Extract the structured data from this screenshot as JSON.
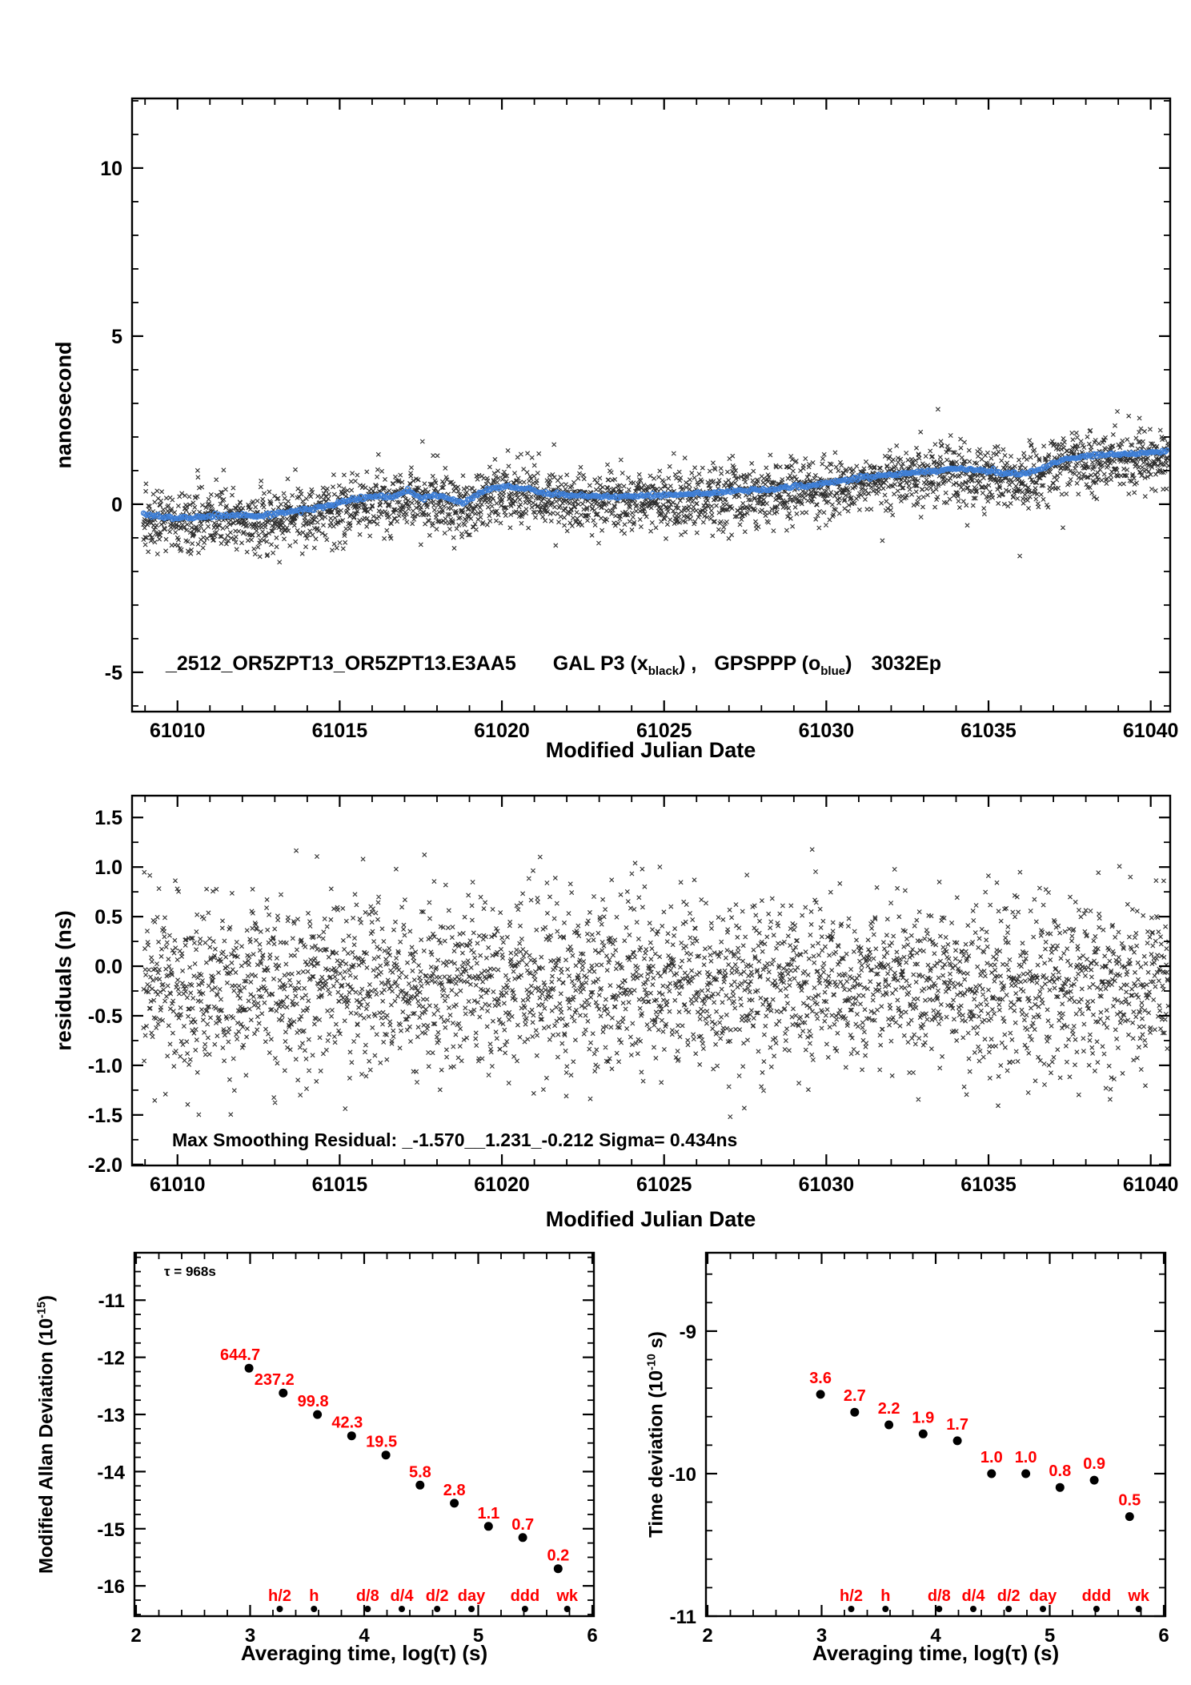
{
  "colors": {
    "blue": "#3f7fd6",
    "red": "#ff0000",
    "black": "#000000",
    "scatter": "#2e2e2e"
  },
  "chart_data": [
    {
      "id": "phase",
      "type": "scatter",
      "xlabel": "Modified Julian Date",
      "ylabel": "nanosecond",
      "xlim": [
        61008.6,
        61040.6
      ],
      "ylim": [
        -6.17,
        12.07
      ],
      "xticks": {
        "values": [
          61010,
          61015,
          61020,
          61025,
          61030,
          61035,
          61040
        ],
        "labels": [
          "61010",
          "61015",
          "61020",
          "61025",
          "61030",
          "61035",
          "61040"
        ]
      },
      "yticks": {
        "values": [
          -5,
          0,
          5,
          10
        ],
        "labels": [
          "-5",
          "0",
          "5",
          "10"
        ]
      },
      "x_minor_step": 1,
      "y_minor_step": 1,
      "annotation": {
        "id": "_2512_OR5ZPT13_OR5ZPT13.E3AA5",
        "series1": {
          "pre": "GAL P3 (x",
          "sub": "black",
          "post": ") ,"
        },
        "series2": {
          "pre": "GPSPPP (o",
          "sub": "blue",
          "post": ")"
        },
        "epochs": "3032Ep"
      },
      "series": [
        {
          "name": "GAL P3 (black x)",
          "marker": "x",
          "n": 3032,
          "sigma": 0.45,
          "offset": -0.15,
          "outlier_frac": 0.012,
          "outlier_scale": 2.3,
          "seed": 20121
        },
        {
          "name": "GPSPPP (blue o)",
          "marker": "o",
          "step": 0.05,
          "jitter": 0.028,
          "r": 2.6,
          "seed": 77,
          "trend": [
            [
              61009,
              -0.3
            ],
            [
              61009.5,
              -0.38
            ],
            [
              61010,
              -0.43
            ],
            [
              61010.5,
              -0.4
            ],
            [
              61011,
              -0.36
            ],
            [
              61011.5,
              -0.33
            ],
            [
              61012,
              -0.3
            ],
            [
              61012.4,
              -0.35
            ],
            [
              61012.8,
              -0.32
            ],
            [
              61013.2,
              -0.26
            ],
            [
              61013.6,
              -0.2
            ],
            [
              61014,
              -0.16
            ],
            [
              61014.4,
              -0.1
            ],
            [
              61014.8,
              -0.02
            ],
            [
              61015.2,
              0.1
            ],
            [
              61015.6,
              0.16
            ],
            [
              61016,
              0.22
            ],
            [
              61016.3,
              0.28
            ],
            [
              61016.6,
              0.2
            ],
            [
              61016.9,
              0.32
            ],
            [
              61017.1,
              0.45
            ],
            [
              61017.3,
              0.3
            ],
            [
              61017.6,
              0.18
            ],
            [
              61017.9,
              0.28
            ],
            [
              61018.2,
              0.22
            ],
            [
              61018.5,
              0.1
            ],
            [
              61018.8,
              0.04
            ],
            [
              61019,
              0.12
            ],
            [
              61019.3,
              0.3
            ],
            [
              61019.6,
              0.44
            ],
            [
              61020,
              0.52
            ],
            [
              61020.4,
              0.5
            ],
            [
              61020.8,
              0.44
            ],
            [
              61021.2,
              0.36
            ],
            [
              61021.6,
              0.3
            ],
            [
              61022,
              0.28
            ],
            [
              61022.5,
              0.25
            ],
            [
              61023,
              0.22
            ],
            [
              61023.5,
              0.22
            ],
            [
              61024,
              0.23
            ],
            [
              61024.5,
              0.25
            ],
            [
              61025,
              0.27
            ],
            [
              61025.5,
              0.29
            ],
            [
              61026,
              0.31
            ],
            [
              61026.5,
              0.33
            ],
            [
              61027,
              0.36
            ],
            [
              61027.5,
              0.39
            ],
            [
              61028,
              0.43
            ],
            [
              61028.5,
              0.47
            ],
            [
              61029,
              0.52
            ],
            [
              61029.5,
              0.57
            ],
            [
              61030,
              0.63
            ],
            [
              61030.5,
              0.71
            ],
            [
              61031,
              0.79
            ],
            [
              61031.5,
              0.84
            ],
            [
              61032,
              0.88
            ],
            [
              61032.5,
              0.92
            ],
            [
              61033,
              0.97
            ],
            [
              61033.5,
              1.01
            ],
            [
              61034,
              1.04
            ],
            [
              61034.5,
              1.02
            ],
            [
              61035,
              0.98
            ],
            [
              61035.5,
              0.93
            ],
            [
              61036,
              0.89
            ],
            [
              61036.3,
              0.95
            ],
            [
              61036.7,
              1.08
            ],
            [
              61037,
              1.22
            ],
            [
              61037.4,
              1.34
            ],
            [
              61037.8,
              1.41
            ],
            [
              61038.2,
              1.44
            ],
            [
              61038.6,
              1.46
            ],
            [
              61039,
              1.48
            ],
            [
              61039.5,
              1.5
            ],
            [
              61040,
              1.53
            ],
            [
              61040.6,
              1.62
            ]
          ]
        }
      ]
    },
    {
      "id": "residuals",
      "type": "scatter",
      "xlabel": "Modified Julian Date",
      "ylabel": "residuals (ns)",
      "xlim": [
        61008.6,
        61040.6
      ],
      "ylim": [
        -2.01,
        1.72
      ],
      "xticks": {
        "values": [
          61010,
          61015,
          61020,
          61025,
          61030,
          61035,
          61040
        ],
        "labels": [
          "61010",
          "61015",
          "61020",
          "61025",
          "61030",
          "61035",
          "61040"
        ]
      },
      "yticks": {
        "values": [
          -2,
          -1.5,
          -1,
          -0.5,
          0,
          0.5,
          1,
          1.5
        ],
        "labels": [
          "-2.0",
          "-1.5",
          "-1.0",
          "-0.5",
          "0.0",
          "0.5",
          "1.0",
          "1.5"
        ]
      },
      "x_minor_step": 1,
      "y_minor_step": 0.25,
      "annotation": "Max Smoothing Residual: _-1.570__1.231_-0.212  Sigma= 0.434ns",
      "stats": {
        "min_ns": -1.57,
        "max_ns": 1.231,
        "last_ns": -0.212,
        "sigma_ns": 0.434
      },
      "gen": {
        "n": 3032,
        "sigma": 0.434,
        "mean": -0.18,
        "clip": [
          -1.57,
          1.231
        ],
        "seed": 9119,
        "marker": "x"
      }
    },
    {
      "id": "mdev",
      "type": "scatter",
      "xlabel": "Averaging time, log(τ) (s)",
      "ylabel": {
        "pre": "Modified Allan Deviation (10",
        "sup": "-15",
        "post": ")"
      },
      "xlim": [
        1.986,
        6.014
      ],
      "ylim": [
        -16.53,
        -10.17
      ],
      "xticks": {
        "values": [
          2,
          3,
          4,
          5,
          6
        ],
        "labels": [
          "2",
          "3",
          "4",
          "5",
          "6"
        ]
      },
      "yticks": {
        "values": [
          -16,
          -15,
          -14,
          -13,
          -12,
          -11
        ],
        "labels": [
          "-16",
          "-15",
          "-14",
          "-13",
          "-12",
          "-11"
        ]
      },
      "x_minor_step": 0.2,
      "y_minor_step": 0.25,
      "tau_note": "τ = 968s",
      "unit_exponent": -15,
      "points": {
        "log_tau": [
          2.99,
          3.29,
          3.59,
          3.89,
          4.19,
          4.49,
          4.79,
          5.09,
          5.39,
          5.7
        ],
        "values": [
          644.7,
          237.2,
          99.8,
          42.3,
          19.5,
          5.8,
          2.8,
          1.1,
          0.7,
          0.2
        ],
        "labels": [
          "644.7",
          "237.2",
          "99.8",
          "42.3",
          "19.5",
          "5.8",
          "2.8",
          "1.1",
          "0.7",
          "0.2"
        ]
      },
      "tau_marks": {
        "labels": [
          "h/2",
          "h",
          "d/8",
          "d/4",
          "d/2",
          "day",
          "ddd",
          "wk"
        ],
        "log_tau": [
          3.26,
          3.56,
          4.03,
          4.33,
          4.64,
          4.94,
          5.41,
          5.78
        ]
      }
    },
    {
      "id": "tdev",
      "type": "scatter",
      "xlabel": "Averaging time, log(τ) (s)",
      "ylabel": {
        "pre": "Time deviation (10",
        "sup": "-10",
        "post": " s)"
      },
      "xlim": [
        1.986,
        6.014
      ],
      "ylim": [
        -11.0,
        -8.45
      ],
      "xticks": {
        "values": [
          2,
          3,
          4,
          5,
          6
        ],
        "labels": [
          "2",
          "3",
          "4",
          "5",
          "6"
        ]
      },
      "yticks": {
        "values": [
          -11,
          -10,
          -9
        ],
        "labels": [
          "-11",
          "-10",
          "-9"
        ]
      },
      "x_minor_step": 0.2,
      "y_minor_step": 0.2,
      "unit_exponent": -10,
      "points": {
        "log_tau": [
          2.99,
          3.29,
          3.59,
          3.89,
          4.19,
          4.49,
          4.79,
          5.09,
          5.39,
          5.7
        ],
        "values": [
          3.6,
          2.7,
          2.2,
          1.9,
          1.7,
          1.0,
          1.0,
          0.8,
          0.9,
          0.5
        ],
        "labels": [
          "3.6",
          "2.7",
          "2.2",
          "1.9",
          "1.7",
          "1.0",
          "1.0",
          "0.8",
          "0.9",
          "0.5"
        ]
      },
      "tau_marks": {
        "labels": [
          "h/2",
          "h",
          "d/8",
          "d/4",
          "d/2",
          "day",
          "ddd",
          "wk"
        ],
        "log_tau": [
          3.26,
          3.56,
          4.03,
          4.33,
          4.64,
          4.94,
          5.41,
          5.78
        ]
      }
    }
  ]
}
